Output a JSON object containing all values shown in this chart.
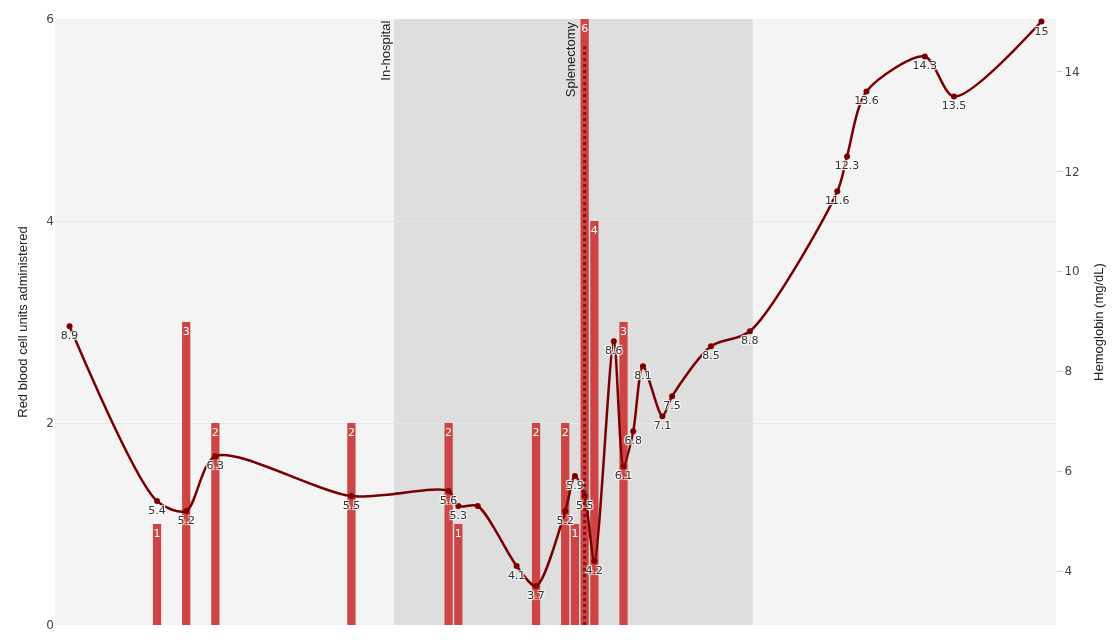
{
  "chart_data": {
    "type": "bar",
    "ylabel": "Red blood cell units administered",
    "y2label": "Hemoglobin (mg/dL)",
    "categories": [
      null,
      null,
      null,
      null,
      null,
      null,
      null,
      null,
      null,
      null,
      null,
      null,
      null,
      null,
      null,
      null,
      null,
      null,
      null,
      null,
      null,
      null,
      null,
      null,
      null,
      null,
      null,
      null,
      null,
      null,
      null,
      null,
      null,
      null,
      null,
      null,
      null,
      null,
      null,
      null,
      null,
      null,
      null,
      null,
      null,
      null,
      null,
      null,
      null,
      null,
      null,
      null,
      null,
      null,
      null,
      null,
      null,
      null,
      null,
      null,
      null,
      null,
      null,
      null,
      null,
      null,
      null,
      null,
      null,
      null,
      null,
      null,
      null,
      null,
      null,
      null,
      null,
      null,
      null,
      null,
      null,
      null,
      null,
      null,
      null,
      null,
      null,
      null,
      null,
      null,
      null,
      null,
      null,
      null,
      null,
      null,
      null,
      null,
      null,
      null,
      null,
      null,
      null
    ],
    "ylim": [
      0,
      6
    ],
    "yticks": [
      0,
      2,
      4,
      6
    ],
    "y2lim": [
      2.92,
      15.05
    ],
    "y2ticks": [
      4,
      6,
      8,
      10,
      12,
      14
    ],
    "tick_labels": "y",
    "grid": "y",
    "data_labels": true,
    "series": [
      {
        "axis": "y",
        "color": "#cc4444",
        "values": [
          null,
          null,
          null,
          null,
          null,
          null,
          null,
          null,
          null,
          null,
          1,
          null,
          null,
          3,
          null,
          null,
          2,
          null,
          null,
          null,
          null,
          null,
          null,
          null,
          null,
          null,
          null,
          null,
          null,
          null,
          2,
          null,
          null,
          null,
          null,
          null,
          null,
          null,
          null,
          null,
          2,
          1,
          null,
          null,
          null,
          null,
          null,
          null,
          null,
          2,
          null,
          null,
          2,
          1,
          6,
          4,
          null,
          null,
          3,
          null,
          null,
          null,
          null,
          null,
          null,
          null,
          null,
          null,
          null,
          null,
          null,
          null,
          null,
          null,
          null,
          null,
          null,
          null,
          null,
          null,
          null,
          null,
          null,
          null,
          null,
          null,
          null,
          null,
          null,
          null,
          null,
          null,
          null,
          null,
          null,
          null,
          null,
          null,
          null,
          null,
          null,
          null,
          null
        ]
      },
      {
        "type": "line",
        "axis": "y2",
        "color": "#7a0000",
        "marker": "circle",
        "line_style": "solid",
        "values": [
          null,
          8.9,
          null,
          null,
          null,
          null,
          null,
          null,
          null,
          null,
          5.4,
          null,
          null,
          5.2,
          null,
          null,
          6.3,
          null,
          null,
          null,
          null,
          null,
          null,
          null,
          null,
          null,
          null,
          null,
          null,
          null,
          5.5,
          null,
          null,
          null,
          null,
          null,
          null,
          null,
          null,
          null,
          5.6,
          5.3,
          null,
          5.3,
          null,
          null,
          null,
          4.1,
          null,
          3.7,
          null,
          null,
          5.2,
          5.9,
          5.5,
          4.2,
          null,
          8.6,
          6.1,
          6.8,
          8.1,
          null,
          7.1,
          7.5,
          null,
          null,
          null,
          8.5,
          null,
          null,
          null,
          8.8,
          null,
          null,
          null,
          null,
          null,
          null,
          null,
          null,
          11.6,
          12.3,
          null,
          13.6,
          null,
          null,
          null,
          null,
          null,
          14.3,
          null,
          null,
          13.5,
          null,
          null,
          null,
          null,
          null,
          null,
          null,
          null,
          15,
          null
        ],
        "value_labels": [
          null,
          "8.9",
          null,
          null,
          null,
          null,
          null,
          null,
          null,
          null,
          "5.4",
          null,
          null,
          "5.2",
          null,
          null,
          "6.3",
          null,
          null,
          null,
          null,
          null,
          null,
          null,
          null,
          null,
          null,
          null,
          null,
          null,
          "5.5",
          null,
          null,
          null,
          null,
          null,
          null,
          null,
          null,
          null,
          "5.6",
          "5.3",
          null,
          null,
          null,
          null,
          null,
          "4.1",
          null,
          "3.7",
          null,
          null,
          "5.2",
          "5.9",
          "5.5",
          "4.2",
          null,
          "8.6",
          "6.1",
          "6.8",
          "8.1",
          null,
          "7.1",
          "7.5",
          null,
          null,
          null,
          "8.5",
          null,
          null,
          null,
          "8.8",
          null,
          null,
          null,
          null,
          null,
          null,
          null,
          null,
          "11.6",
          "12.3",
          null,
          "13.6",
          null,
          null,
          null,
          null,
          null,
          "14.3",
          null,
          null,
          "13.5",
          null,
          null,
          null,
          null,
          null,
          null,
          null,
          null,
          "15",
          null
        ]
      }
    ],
    "annotations": [
      "In-hospital",
      "Splenectomy"
    ]
  }
}
